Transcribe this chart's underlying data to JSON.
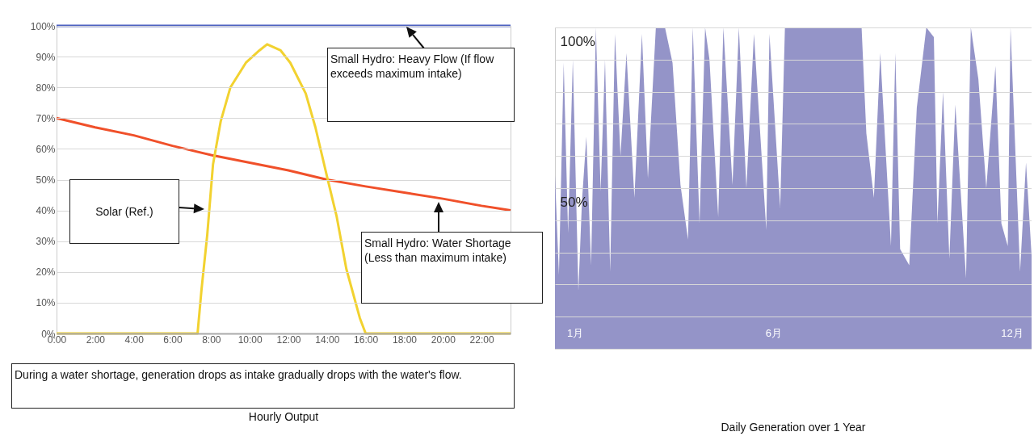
{
  "chart_data": [
    {
      "type": "line",
      "title": "Hourly Output",
      "xlim": [
        0,
        23.5
      ],
      "ylim": [
        0,
        100
      ],
      "xticks": [
        {
          "value": 0,
          "label": "0:00"
        },
        {
          "value": 2,
          "label": "2:00"
        },
        {
          "value": 4,
          "label": "4:00"
        },
        {
          "value": 6,
          "label": "6:00"
        },
        {
          "value": 8,
          "label": "8:00"
        },
        {
          "value": 10,
          "label": "10:00"
        },
        {
          "value": 12,
          "label": "12:00"
        },
        {
          "value": 14,
          "label": "14:00"
        },
        {
          "value": 16,
          "label": "16:00"
        },
        {
          "value": 18,
          "label": "18:00"
        },
        {
          "value": 20,
          "label": "20:00"
        },
        {
          "value": 22,
          "label": "22:00"
        }
      ],
      "yticks": [
        {
          "value": 0,
          "label": "0%"
        },
        {
          "value": 10,
          "label": "10%"
        },
        {
          "value": 20,
          "label": "20%"
        },
        {
          "value": 30,
          "label": "30%"
        },
        {
          "value": 40,
          "label": "40%"
        },
        {
          "value": 50,
          "label": "50%"
        },
        {
          "value": 60,
          "label": "60%"
        },
        {
          "value": 70,
          "label": "70%"
        },
        {
          "value": 80,
          "label": "80%"
        },
        {
          "value": 90,
          "label": "90%"
        },
        {
          "value": 100,
          "label": "100%"
        }
      ],
      "grid": "y",
      "series": [
        {
          "color": "#4a5fc1",
          "x": [
            0,
            23.5
          ],
          "values": [
            100,
            100
          ]
        },
        {
          "color": "#f0502a",
          "x": [
            0,
            2,
            4,
            6,
            8,
            10,
            12,
            14,
            16,
            18,
            20,
            22,
            23.5
          ],
          "values": [
            70,
            67,
            64.4,
            61,
            58,
            55.5,
            53,
            50,
            47.8,
            45.8,
            43.8,
            41.5,
            40
          ]
        },
        {
          "color": "#f2d230",
          "x": [
            0,
            7.3,
            7.5,
            7.8,
            8.1,
            8.5,
            9,
            9.8,
            10.5,
            10.9,
            11.6,
            12.1,
            12.9,
            13.4,
            14,
            14.5,
            15,
            15.7,
            16,
            23.5
          ],
          "values": [
            0,
            0,
            14,
            32,
            55,
            69,
            80,
            88,
            92,
            94,
            92,
            88,
            78,
            67,
            51,
            38,
            21,
            5,
            0,
            0
          ]
        }
      ],
      "annotations": [
        {
          "text": "Small Hydro: Heavy Flow (If flow exceeds maximum intake)",
          "x": 18.1,
          "y": 100
        },
        "Solar (Ref.)",
        "Small Hydro: Water Shortage (Less than maximum intake)",
        "During a water shortage, generation drops as intake gradually drops with the water's flow."
      ]
    },
    {
      "type": "area",
      "title": "Daily Generation over 1 Year",
      "xlim": [
        0.5,
        12.5
      ],
      "ylim": [
        0,
        100
      ],
      "xticks": [
        {
          "value": 1,
          "label": "1月"
        },
        {
          "value": 6,
          "label": "6月"
        },
        {
          "value": 12,
          "label": "12月"
        }
      ],
      "yticks": [
        {
          "value": 0,
          "label": null
        },
        {
          "value": 10,
          "label": null
        },
        {
          "value": 20,
          "label": null
        },
        {
          "value": 30,
          "label": null
        },
        {
          "value": 40,
          "label": null
        },
        {
          "value": 50,
          "label": "50%"
        },
        {
          "value": 60,
          "label": null
        },
        {
          "value": 70,
          "label": null
        },
        {
          "value": 80,
          "label": null
        },
        {
          "value": 90,
          "label": null
        },
        {
          "value": 100,
          "label": "100%"
        }
      ],
      "grid": "y",
      "x": [
        0.5,
        0.6,
        0.72,
        0.83,
        0.95,
        1.09,
        1.18,
        1.29,
        1.41,
        1.53,
        1.65,
        1.76,
        1.89,
        2.01,
        2.15,
        2.3,
        2.5,
        2.69,
        2.84,
        3.04,
        3.27,
        3.46,
        3.66,
        3.85,
        3.97,
        4.14,
        4.28,
        4.39,
        4.61,
        4.74,
        4.97,
        5.13,
        5.32,
        5.51,
        5.82,
        5.9,
        6.17,
        6.29,
        6.48,
        8.22,
        8.34,
        8.53,
        8.69,
        8.96,
        9.07,
        9.19,
        9.42,
        9.61,
        9.85,
        10.04,
        10.13,
        10.27,
        10.43,
        10.58,
        10.85,
        10.97,
        11.16,
        11.36,
        11.59,
        11.74,
        11.9,
        11.97,
        12.21,
        12.36,
        12.5
      ],
      "series": [
        {
          "color": "#9494c8",
          "values": [
            54,
            23,
            89,
            36,
            90,
            18,
            46,
            66,
            26,
            100,
            49,
            90,
            24,
            98,
            60,
            92,
            47,
            98,
            53,
            100,
            100,
            89,
            51,
            34,
            100,
            39,
            100,
            90,
            41,
            100,
            51,
            100,
            50,
            98,
            37,
            98,
            44,
            100,
            100,
            100,
            67,
            47,
            92,
            32,
            92,
            31,
            26,
            75,
            100,
            97,
            39,
            80,
            28,
            76,
            22,
            100,
            84,
            50,
            88,
            39,
            32,
            100,
            24,
            58,
            29
          ]
        }
      ]
    }
  ]
}
